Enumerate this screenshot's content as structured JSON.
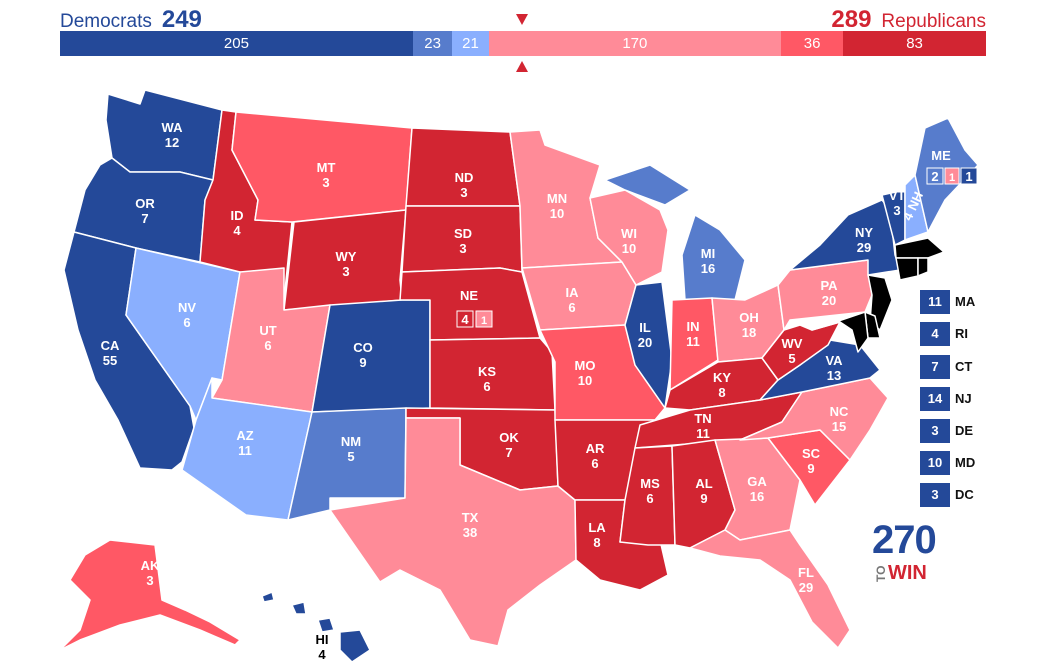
{
  "header": {
    "dem_label": "Democrats",
    "dem_total": "249",
    "rep_total": "289",
    "rep_label": "Republicans"
  },
  "colors": {
    "safe_dem": "#244999",
    "likely_dem": "#577ccc",
    "lean_dem": "#8aaffe",
    "lean_rep": "#ff8b98",
    "likely_rep": "#ff5865",
    "safe_rep": "#d22532"
  },
  "bar": [
    {
      "label": "205",
      "value": 205,
      "rating": "safe_dem"
    },
    {
      "label": "23",
      "value": 23,
      "rating": "likely_dem"
    },
    {
      "label": "21",
      "value": 21,
      "rating": "lean_dem"
    },
    {
      "label": "170",
      "value": 170,
      "rating": "lean_rep"
    },
    {
      "label": "36",
      "value": 36,
      "rating": "likely_rep"
    },
    {
      "label": "83",
      "value": 83,
      "rating": "safe_rep"
    }
  ],
  "states": {
    "WA": {
      "abbr": "WA",
      "ev": "12",
      "rating": "safe_dem"
    },
    "OR": {
      "abbr": "OR",
      "ev": "7",
      "rating": "safe_dem"
    },
    "CA": {
      "abbr": "CA",
      "ev": "55",
      "rating": "safe_dem"
    },
    "NV": {
      "abbr": "NV",
      "ev": "6",
      "rating": "lean_dem"
    },
    "ID": {
      "abbr": "ID",
      "ev": "4",
      "rating": "safe_rep"
    },
    "MT": {
      "abbr": "MT",
      "ev": "3",
      "rating": "likely_rep"
    },
    "WY": {
      "abbr": "WY",
      "ev": "3",
      "rating": "safe_rep"
    },
    "UT": {
      "abbr": "UT",
      "ev": "6",
      "rating": "lean_rep"
    },
    "AZ": {
      "abbr": "AZ",
      "ev": "11",
      "rating": "lean_dem"
    },
    "CO": {
      "abbr": "CO",
      "ev": "9",
      "rating": "safe_dem"
    },
    "NM": {
      "abbr": "NM",
      "ev": "5",
      "rating": "likely_dem"
    },
    "ND": {
      "abbr": "ND",
      "ev": "3",
      "rating": "safe_rep"
    },
    "SD": {
      "abbr": "SD",
      "ev": "3",
      "rating": "safe_rep"
    },
    "NE": {
      "abbr": "NE",
      "ev": "4",
      "rating": "safe_rep"
    },
    "KS": {
      "abbr": "KS",
      "ev": "6",
      "rating": "safe_rep"
    },
    "OK": {
      "abbr": "OK",
      "ev": "7",
      "rating": "safe_rep"
    },
    "TX": {
      "abbr": "TX",
      "ev": "38",
      "rating": "lean_rep"
    },
    "MN": {
      "abbr": "MN",
      "ev": "10",
      "rating": "lean_rep"
    },
    "IA": {
      "abbr": "IA",
      "ev": "6",
      "rating": "lean_rep"
    },
    "MO": {
      "abbr": "MO",
      "ev": "10",
      "rating": "likely_rep"
    },
    "AR": {
      "abbr": "AR",
      "ev": "6",
      "rating": "safe_rep"
    },
    "LA": {
      "abbr": "LA",
      "ev": "8",
      "rating": "safe_rep"
    },
    "WI": {
      "abbr": "WI",
      "ev": "10",
      "rating": "lean_rep"
    },
    "IL": {
      "abbr": "IL",
      "ev": "20",
      "rating": "safe_dem"
    },
    "MI": {
      "abbr": "MI",
      "ev": "16",
      "rating": "likely_dem"
    },
    "IN": {
      "abbr": "IN",
      "ev": "11",
      "rating": "likely_rep"
    },
    "OH": {
      "abbr": "OH",
      "ev": "18",
      "rating": "lean_rep"
    },
    "KY": {
      "abbr": "KY",
      "ev": "8",
      "rating": "safe_rep"
    },
    "TN": {
      "abbr": "TN",
      "ev": "11",
      "rating": "safe_rep"
    },
    "MS": {
      "abbr": "MS",
      "ev": "6",
      "rating": "safe_rep"
    },
    "AL": {
      "abbr": "AL",
      "ev": "9",
      "rating": "safe_rep"
    },
    "GA": {
      "abbr": "GA",
      "ev": "16",
      "rating": "lean_rep"
    },
    "FL": {
      "abbr": "FL",
      "ev": "29",
      "rating": "lean_rep"
    },
    "SC": {
      "abbr": "SC",
      "ev": "9",
      "rating": "likely_rep"
    },
    "NC": {
      "abbr": "NC",
      "ev": "15",
      "rating": "lean_rep"
    },
    "VA": {
      "abbr": "VA",
      "ev": "13",
      "rating": "safe_dem"
    },
    "WV": {
      "abbr": "WV",
      "ev": "5",
      "rating": "safe_rep"
    },
    "PA": {
      "abbr": "PA",
      "ev": "20",
      "rating": "lean_rep"
    },
    "NY": {
      "abbr": "NY",
      "ev": "29",
      "rating": "safe_dem"
    },
    "VT": {
      "abbr": "VT",
      "ev": "3",
      "rating": "safe_dem"
    },
    "NH": {
      "abbr": "NH",
      "ev": "4",
      "rating": "lean_dem"
    },
    "ME": {
      "abbr": "ME",
      "ev": "",
      "rating": "likely_dem"
    },
    "AK": {
      "abbr": "AK",
      "ev": "3",
      "rating": "likely_rep"
    },
    "HI": {
      "abbr": "HI",
      "ev": "4",
      "rating": "safe_dem"
    }
  },
  "districts": {
    "ne_1": {
      "value": "4",
      "rating": "safe_rep"
    },
    "ne_2": {
      "value": "1",
      "rating": "lean_rep"
    },
    "me_1": {
      "value": "2",
      "rating": "likely_dem"
    },
    "me_2": {
      "value": "1",
      "rating": "lean_rep"
    },
    "me_3": {
      "value": "1",
      "rating": "safe_dem"
    }
  },
  "small_states": [
    {
      "abbr": "MA",
      "ev": "11",
      "rating": "safe_dem"
    },
    {
      "abbr": "RI",
      "ev": "4",
      "rating": "safe_dem"
    },
    {
      "abbr": "CT",
      "ev": "7",
      "rating": "safe_dem"
    },
    {
      "abbr": "NJ",
      "ev": "14",
      "rating": "safe_dem"
    },
    {
      "abbr": "DE",
      "ev": "3",
      "rating": "safe_dem"
    },
    {
      "abbr": "MD",
      "ev": "10",
      "rating": "safe_dem"
    },
    {
      "abbr": "DC",
      "ev": "3",
      "rating": "safe_dem"
    }
  ],
  "logo": {
    "number": "270",
    "to": "TO",
    "win": "WIN"
  }
}
